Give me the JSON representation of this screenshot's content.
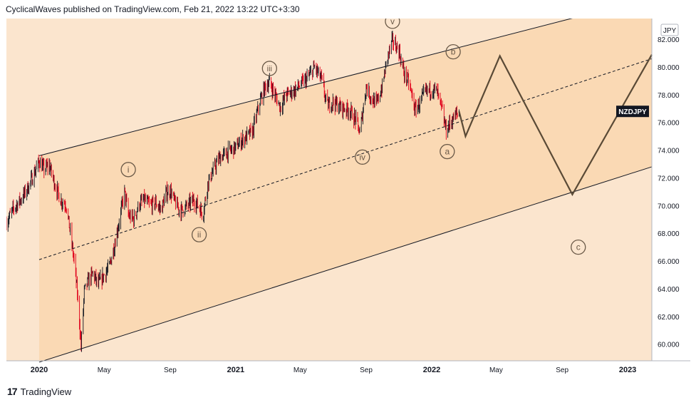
{
  "header": {
    "publisher": "CyclicalWaves published on TradingView.com, Feb 21, 2022 13:22 UTC+3:30"
  },
  "footer": {
    "brand": "TradingView",
    "logo_glyph": "17"
  },
  "colors": {
    "channel_fill": "#fad9b4",
    "background_fill": "#fbe5ce",
    "candle_up": "#131722",
    "candle_down": "#e0001a",
    "projection": "#5a4a36",
    "wave_label": "#6b5a48"
  },
  "chart_data": {
    "type": "line",
    "symbol": "NZDJPY",
    "currency": "JPY",
    "last_price": 76.8,
    "y_axis": {
      "min": 58.8,
      "max": 83.5,
      "ticks": [
        "60.000",
        "62.000",
        "64.000",
        "66.000",
        "68.000",
        "70.000",
        "72.000",
        "74.000",
        "76.000",
        "78.000",
        "80.000",
        "82.000"
      ]
    },
    "x_axis": {
      "range": [
        "2019-11-01",
        "2023-02-15"
      ],
      "ticks": [
        {
          "label": "2020",
          "date": "2020-01-01"
        },
        {
          "label": "May",
          "date": "2020-05-01"
        },
        {
          "label": "Sep",
          "date": "2020-09-01"
        },
        {
          "label": "2021",
          "date": "2021-01-01"
        },
        {
          "label": "May",
          "date": "2021-05-01"
        },
        {
          "label": "Sep",
          "date": "2021-09-01"
        },
        {
          "label": "2022",
          "date": "2022-01-01"
        },
        {
          "label": "May",
          "date": "2022-05-01"
        },
        {
          "label": "Sep",
          "date": "2022-09-01"
        },
        {
          "label": "2023",
          "date": "2023-01-01"
        }
      ]
    },
    "series": [
      {
        "values": [
          [
            "2019-11-01",
            68.8
          ],
          [
            "2019-11-15",
            69.8
          ],
          [
            "2019-12-01",
            70.6
          ],
          [
            "2019-12-15",
            71.6
          ],
          [
            "2020-01-01",
            73.2
          ],
          [
            "2020-01-10",
            72.6
          ],
          [
            "2020-01-20",
            72.9
          ],
          [
            "2020-02-01",
            71.3
          ],
          [
            "2020-02-10",
            70.4
          ],
          [
            "2020-02-20",
            70.1
          ],
          [
            "2020-03-01",
            67.5
          ],
          [
            "2020-03-08",
            65.4
          ],
          [
            "2020-03-15",
            62.3
          ],
          [
            "2020-03-19",
            59.8
          ],
          [
            "2020-03-25",
            63.8
          ],
          [
            "2020-04-01",
            64.5
          ],
          [
            "2020-04-10",
            65.1
          ],
          [
            "2020-04-20",
            64.3
          ],
          [
            "2020-05-01",
            65.0
          ],
          [
            "2020-05-10",
            65.5
          ],
          [
            "2020-05-20",
            67.1
          ],
          [
            "2020-06-01",
            69.5
          ],
          [
            "2020-06-08",
            71.0
          ],
          [
            "2020-06-15",
            69.3
          ],
          [
            "2020-06-25",
            69.0
          ],
          [
            "2020-07-05",
            70.1
          ],
          [
            "2020-07-15",
            70.4
          ],
          [
            "2020-07-25",
            70.0
          ],
          [
            "2020-08-05",
            70.2
          ],
          [
            "2020-08-15",
            69.7
          ],
          [
            "2020-08-25",
            70.9
          ],
          [
            "2020-09-01",
            71.1
          ],
          [
            "2020-09-10",
            70.2
          ],
          [
            "2020-09-20",
            69.6
          ],
          [
            "2020-10-01",
            69.9
          ],
          [
            "2020-10-15",
            70.4
          ],
          [
            "2020-10-25",
            69.9
          ],
          [
            "2020-11-01",
            69.3
          ],
          [
            "2020-11-10",
            71.6
          ],
          [
            "2020-11-20",
            72.5
          ],
          [
            "2020-12-01",
            73.4
          ],
          [
            "2020-12-15",
            73.8
          ],
          [
            "2021-01-01",
            74.2
          ],
          [
            "2021-01-15",
            74.8
          ],
          [
            "2021-02-01",
            75.3
          ],
          [
            "2021-02-15",
            77.5
          ],
          [
            "2021-02-25",
            78.6
          ],
          [
            "2021-03-05",
            78.9
          ],
          [
            "2021-03-15",
            78.0
          ],
          [
            "2021-03-25",
            77.1
          ],
          [
            "2021-04-05",
            78.0
          ],
          [
            "2021-04-20",
            78.3
          ],
          [
            "2021-05-01",
            78.7
          ],
          [
            "2021-05-15",
            79.2
          ],
          [
            "2021-05-28",
            80.0
          ],
          [
            "2021-06-10",
            79.1
          ],
          [
            "2021-06-20",
            77.2
          ],
          [
            "2021-07-01",
            77.5
          ],
          [
            "2021-07-15",
            77.1
          ],
          [
            "2021-08-01",
            76.9
          ],
          [
            "2021-08-15",
            76.0
          ],
          [
            "2021-08-20",
            75.2
          ],
          [
            "2021-09-01",
            78.6
          ],
          [
            "2021-09-10",
            77.8
          ],
          [
            "2021-09-20",
            77.3
          ],
          [
            "2021-10-01",
            78.6
          ],
          [
            "2021-10-10",
            80.6
          ],
          [
            "2021-10-20",
            81.9
          ],
          [
            "2021-11-01",
            81.2
          ],
          [
            "2021-11-10",
            79.6
          ],
          [
            "2021-11-20",
            78.8
          ],
          [
            "2021-12-01",
            76.9
          ],
          [
            "2021-12-10",
            77.4
          ],
          [
            "2021-12-20",
            78.2
          ],
          [
            "2022-01-01",
            78.4
          ],
          [
            "2022-01-10",
            78.3
          ],
          [
            "2022-01-20",
            76.9
          ],
          [
            "2022-01-28",
            75.4
          ],
          [
            "2022-02-05",
            76.0
          ],
          [
            "2022-02-12",
            76.4
          ],
          [
            "2022-02-21",
            76.8
          ]
        ]
      }
    ],
    "channel": {
      "upper": [
        [
          "2020-01-01",
          73.6
        ],
        [
          "2023-02-15",
          85.0
        ]
      ],
      "middle": [
        [
          "2020-01-01",
          66.1
        ],
        [
          "2023-02-15",
          80.6
        ]
      ],
      "lower": [
        [
          "2020-01-01",
          58.7
        ],
        [
          "2023-02-15",
          72.8
        ]
      ]
    },
    "projection": [
      [
        "2022-02-21",
        76.8
      ],
      [
        "2022-03-05",
        75.0
      ],
      [
        "2022-05-08",
        80.8
      ],
      [
        "2022-09-20",
        70.8
      ],
      [
        "2023-02-15",
        80.9
      ]
    ],
    "wave_labels": [
      {
        "label": "i",
        "date": "2020-06-15",
        "value": 72.6
      },
      {
        "label": "ii",
        "date": "2020-10-25",
        "value": 67.9
      },
      {
        "label": "iii",
        "date": "2021-03-05",
        "value": 79.9
      },
      {
        "label": "iv",
        "date": "2021-08-25",
        "value": 73.5
      },
      {
        "label": "v",
        "date": "2021-10-20",
        "value": 83.3
      },
      {
        "label": "a",
        "date": "2022-01-30",
        "value": 73.9
      },
      {
        "label": "b",
        "date": "2022-02-10",
        "value": 81.1
      },
      {
        "label": "c",
        "date": "2022-10-01",
        "value": 67.0
      }
    ]
  }
}
